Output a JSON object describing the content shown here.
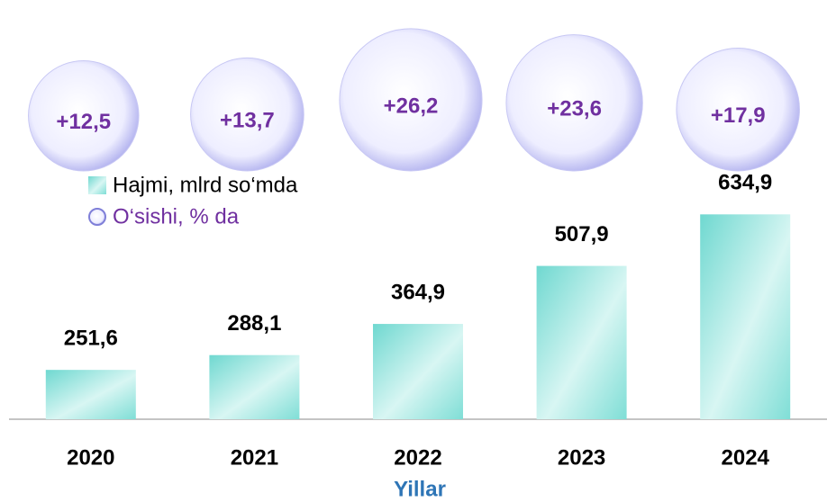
{
  "chart_data": {
    "type": "bar",
    "x_label": "Yillar",
    "categories": [
      "2020",
      "2021",
      "2022",
      "2023",
      "2024"
    ],
    "ylim": [
      130,
      640
    ],
    "series": [
      {
        "name": "Hajmi, mlrd so‘mda",
        "color": "#7fded6",
        "values": [
          251.6,
          288.1,
          364.9,
          507.9,
          634.9
        ],
        "value_labels": [
          "251,6",
          "288,1",
          "364,9",
          "507,9",
          "634,9"
        ]
      },
      {
        "name": "O‘sishi, % da",
        "type": "bubble",
        "color": "#7030a0",
        "values": [
          12.5,
          13.7,
          26.2,
          23.6,
          17.9
        ],
        "value_labels": [
          "+12,5",
          "+13,7",
          "+26,2",
          "+23,6",
          "+17,9"
        ]
      }
    ]
  }
}
